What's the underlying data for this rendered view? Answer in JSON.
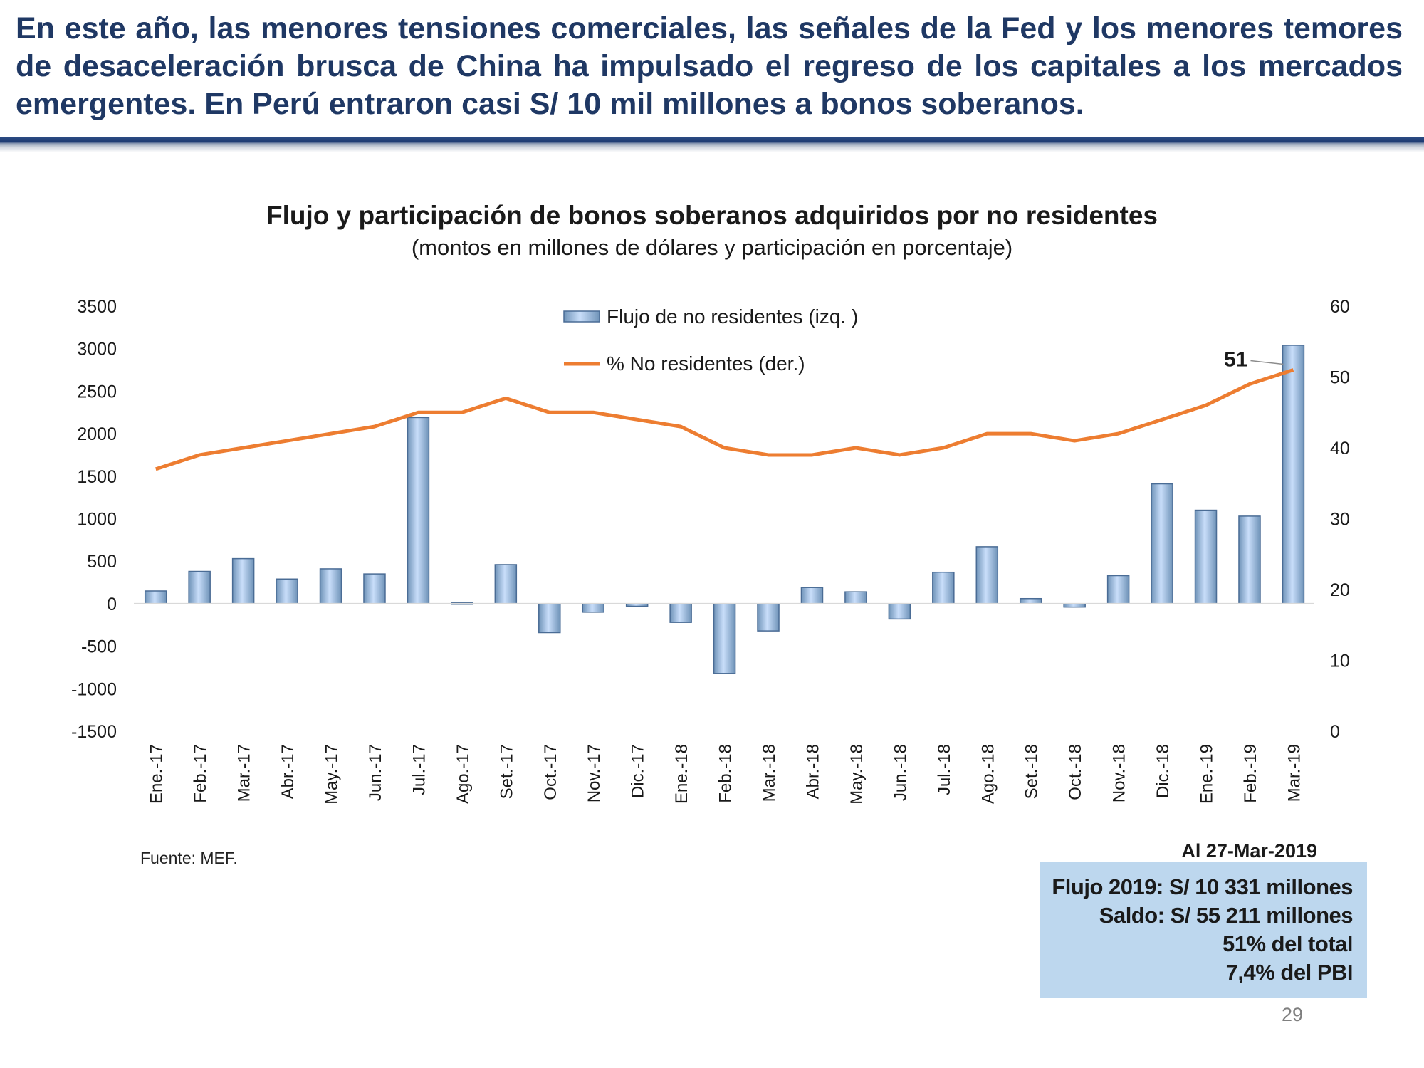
{
  "headline": "En este año, las menores tensiones comerciales, las señales de la Fed y los menores temores de desaceleración brusca de China ha impulsado el regreso de los capitales a los mercados emergentes. En Perú entraron casi S/ 10 mil millones a bonos soberanos.",
  "colors": {
    "headline": "#1f3864",
    "bar": "#9dc3e6",
    "line": "#ed7d31",
    "summary_box": "#bdd7ee"
  },
  "chart_data": {
    "type": "bar+line",
    "title": "Flujo y participación de bonos soberanos adquiridos por no residentes",
    "subtitle": "(montos en millones de dólares y participación en porcentaje)",
    "categories": [
      "Ene.-17",
      "Feb.-17",
      "Mar.-17",
      "Abr.-17",
      "May.-17",
      "Jun.-17",
      "Jul.-17",
      "Ago.-17",
      "Set.-17",
      "Oct.-17",
      "Nov.-17",
      "Dic.-17",
      "Ene.-18",
      "Feb.-18",
      "Mar.-18",
      "Abr.-18",
      "May.-18",
      "Jun.-18",
      "Jul.-18",
      "Ago.-18",
      "Set.-18",
      "Oct.-18",
      "Nov.-18",
      "Dic.-18",
      "Ene.-19",
      "Feb.-19",
      "Mar.-19"
    ],
    "series": [
      {
        "name": "Flujo de no residentes (izq. )",
        "type": "bar",
        "axis": "left",
        "values": [
          150,
          380,
          530,
          290,
          410,
          350,
          2190,
          10,
          460,
          -340,
          -100,
          -30,
          -220,
          -820,
          -320,
          190,
          140,
          -180,
          370,
          670,
          60,
          -40,
          330,
          1410,
          1100,
          1030,
          3040
        ]
      },
      {
        "name": "% No residentes (der.)",
        "type": "line",
        "axis": "right",
        "values": [
          37,
          39,
          40,
          41,
          42,
          43,
          45,
          45,
          47,
          45,
          45,
          44,
          43,
          40,
          39,
          39,
          40,
          39,
          40,
          42,
          42,
          41,
          42,
          44,
          46,
          49,
          51
        ]
      }
    ],
    "y_left": {
      "min": -1500,
      "max": 3500,
      "ticks": [
        "3500",
        "3000",
        "2500",
        "2000",
        "1500",
        "1000",
        "500",
        "0",
        "-500",
        "-1000",
        "-1500"
      ]
    },
    "y_right": {
      "min": 0,
      "max": 60,
      "ticks": [
        "60",
        "50",
        "40",
        "30",
        "20",
        "10",
        "0"
      ]
    },
    "annotation": "51",
    "legend_position": "top-center",
    "grid": false
  },
  "source": "Fuente: MEF.",
  "summary": {
    "date": "Al 27-Mar-2019",
    "lines": [
      "Flujo 2019: S/ 10 331 millones",
      "Saldo: S/ 55 211 millones",
      "51% del total",
      "7,4% del PBI"
    ]
  },
  "page_number": "29"
}
